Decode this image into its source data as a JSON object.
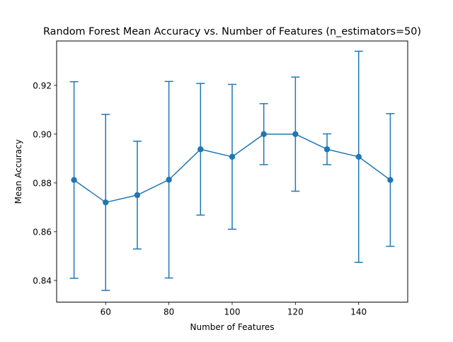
{
  "chart_data": {
    "type": "line",
    "title": "Random Forest Mean Accuracy vs. Number of Features (n_estimators=50)",
    "xlabel": "Number of Features",
    "ylabel": "Mean Accuracy",
    "xlim": [
      44.5,
      155.5
    ],
    "ylim": [
      0.8311,
      0.9382
    ],
    "xticks": [
      60,
      80,
      100,
      120,
      140
    ],
    "yticks": [
      0.84,
      0.86,
      0.88,
      0.9,
      0.92
    ],
    "xtick_labels": [
      "60",
      "80",
      "100",
      "120",
      "140"
    ],
    "ytick_labels": [
      "0.84",
      "0.86",
      "0.88",
      "0.90",
      "0.92"
    ],
    "grid": false,
    "legend": null,
    "series": [
      {
        "color": "#1f77b4",
        "marker": "circle",
        "x": [
          50,
          60,
          70,
          80,
          90,
          100,
          110,
          120,
          130,
          140,
          150
        ],
        "y": [
          0.8812,
          0.872,
          0.875,
          0.8813,
          0.8938,
          0.8907,
          0.9,
          0.9,
          0.8938,
          0.8907,
          0.8812
        ],
        "error": [
          0.0403,
          0.0361,
          0.0221,
          0.0403,
          0.027,
          0.0297,
          0.0125,
          0.0234,
          0.0063,
          0.0433,
          0.0272
        ]
      }
    ]
  }
}
